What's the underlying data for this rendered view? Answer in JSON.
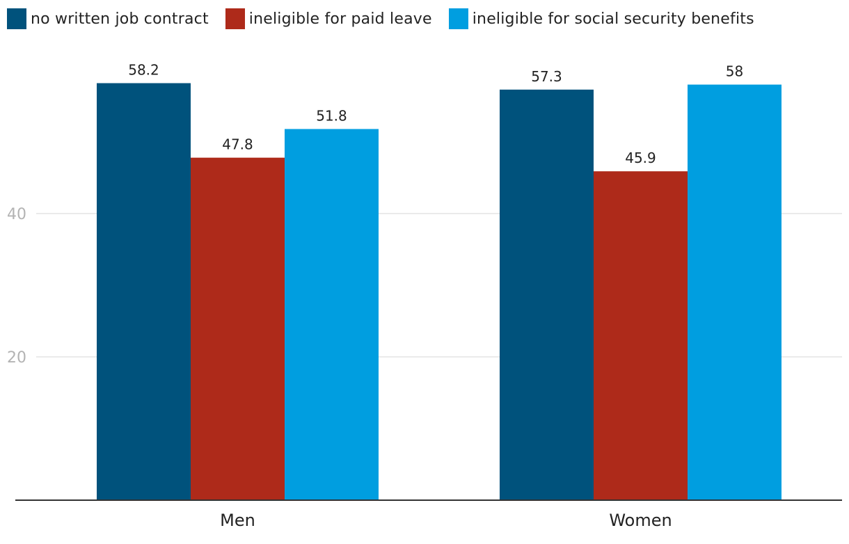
{
  "chart_data": {
    "type": "bar",
    "title": "",
    "xlabel": "",
    "ylabel": "",
    "categories": [
      "Men",
      "Women"
    ],
    "series": [
      {
        "name": "no written job contract",
        "color": "#00527c",
        "values": [
          58.2,
          57.3
        ],
        "labels": [
          "58.2",
          "57.3"
        ]
      },
      {
        "name": "ineligible for paid leave",
        "color": "#ae2a1a",
        "values": [
          47.8,
          45.9
        ],
        "labels": [
          "47.8",
          "45.9"
        ]
      },
      {
        "name": "ineligible for social security benefits",
        "color": "#009ee0",
        "values": [
          51.8,
          58
        ],
        "labels": [
          "51.8",
          "58"
        ]
      }
    ],
    "ylim": [
      0,
      60
    ],
    "yticks": [
      20,
      40
    ],
    "ytick_labels": [
      "20",
      "40"
    ],
    "grid": true,
    "legend": "top-left"
  }
}
